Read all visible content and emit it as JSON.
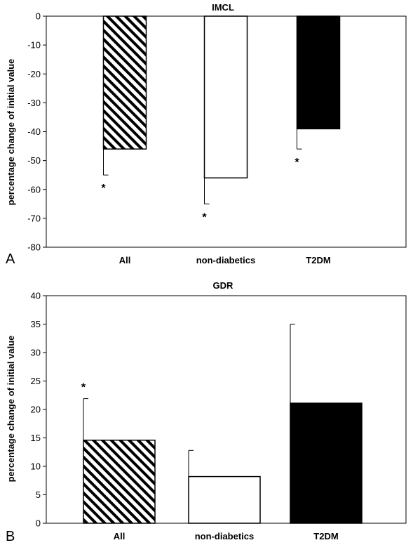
{
  "chart_data": [
    {
      "panel": "A",
      "type": "bar",
      "title": "IMCL",
      "ylabel": "percentage change of initial value",
      "xlabel": "",
      "categories": [
        "All",
        "non-diabetics",
        "T2DM"
      ],
      "values": [
        -46,
        -56,
        -39
      ],
      "errors": [
        9,
        9,
        7
      ],
      "error_direction": "down",
      "significance": [
        "*",
        "*",
        "*"
      ],
      "ylim": [
        -80,
        0
      ],
      "yticks": [
        0,
        -10,
        -20,
        -30,
        -40,
        -50,
        -60,
        -70,
        -80
      ],
      "fills": [
        "hatch",
        "#ffffff",
        "#000000"
      ],
      "grid": false,
      "legend": "none"
    },
    {
      "panel": "B",
      "type": "bar",
      "title": "GDR",
      "ylabel": "percentage change of initial value",
      "xlabel": "",
      "categories": [
        "All",
        "non-diabetics",
        "T2DM"
      ],
      "values": [
        14.6,
        8.2,
        21.1
      ],
      "errors": [
        7.3,
        4.6,
        13.9
      ],
      "error_direction": "up",
      "significance": [
        "*",
        "",
        ""
      ],
      "ylim": [
        0,
        40
      ],
      "yticks": [
        0,
        5,
        10,
        15,
        20,
        25,
        30,
        35,
        40
      ],
      "fills": [
        "hatch",
        "#ffffff",
        "#000000"
      ],
      "grid": false,
      "legend": "none"
    }
  ]
}
